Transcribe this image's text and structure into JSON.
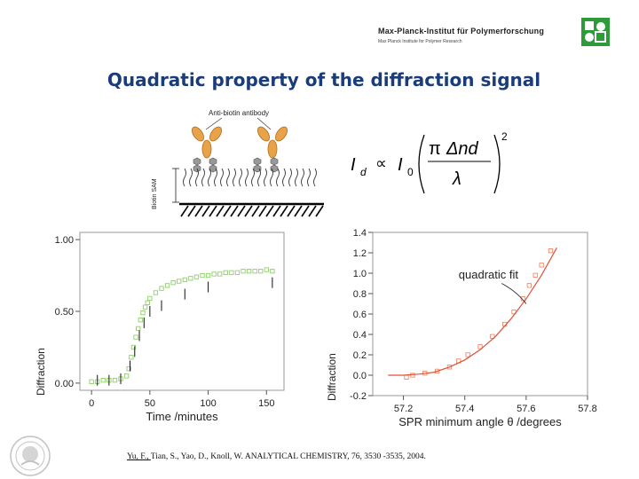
{
  "header": {
    "institute_name": "Max-Planck-Institut für Polymerforschung",
    "institute_subtitle": "Max Planck Institute for Polymer Research"
  },
  "slide_title": "Quadratic property of the diffraction signal",
  "schematic": {
    "antibody_label": "Anti-biotin antibody",
    "sam_label": "Biotin SAM"
  },
  "formula": {
    "lhs": "I",
    "lhs_sub": "d",
    "proportional": "∝",
    "rhs": "I",
    "rhs_sub": "0",
    "num_pi": "π",
    "num_delta": "Δnd",
    "den": "λ",
    "power": "2"
  },
  "colors": {
    "title": "#1a3c7a",
    "green_markers": "#8fcf6a",
    "fit_line": "#e0503a",
    "data_markers": "#f08a6a",
    "plot_frame": "#9a9a9a"
  },
  "chart_data": [
    {
      "type": "scatter",
      "xlabel": "Time /minutes",
      "ylabel": "Diffraction",
      "xticks": [
        "0",
        "50",
        "100",
        "150"
      ],
      "yticks": [
        "0.00",
        "0.50",
        "1.00"
      ],
      "xlim": [
        -10,
        165
      ],
      "ylim": [
        -0.05,
        1.05
      ],
      "series": [
        {
          "marker": "square-green",
          "x": [
            0,
            5,
            10,
            15,
            20,
            25,
            30,
            32,
            34,
            36,
            38,
            40,
            42,
            44,
            46,
            48,
            50,
            55,
            60,
            65,
            70,
            75,
            80,
            85,
            90,
            95,
            100,
            105,
            110,
            115,
            120,
            125,
            130,
            135,
            140,
            145,
            150,
            155
          ],
          "y": [
            0.01,
            0.01,
            0.02,
            0.02,
            0.02,
            0.03,
            0.05,
            0.1,
            0.18,
            0.25,
            0.32,
            0.38,
            0.44,
            0.49,
            0.53,
            0.56,
            0.59,
            0.63,
            0.66,
            0.68,
            0.7,
            0.71,
            0.72,
            0.73,
            0.74,
            0.75,
            0.75,
            0.76,
            0.76,
            0.77,
            0.77,
            0.77,
            0.78,
            0.78,
            0.78,
            0.78,
            0.79,
            0.78
          ]
        },
        {
          "marker": "errorbar-black",
          "x": [
            5,
            15,
            25,
            33,
            37,
            41,
            45,
            50,
            60,
            80,
            100,
            155
          ],
          "y": [
            0.02,
            0.02,
            0.03,
            0.12,
            0.22,
            0.33,
            0.42,
            0.5,
            0.54,
            0.62,
            0.67,
            0.7
          ]
        }
      ]
    },
    {
      "type": "scatter",
      "xlabel": "SPR minimum angle θ /degrees",
      "ylabel": "Diffraction",
      "xticks": [
        "57.2",
        "57.4",
        "57.6",
        "57.8"
      ],
      "yticks": [
        "-0.2",
        "0.0",
        "0.2",
        "0.4",
        "0.6",
        "0.8",
        "1.0",
        "1.2",
        "1.4"
      ],
      "xlim": [
        57.1,
        57.8
      ],
      "ylim": [
        -0.2,
        1.4
      ],
      "annotation": "quadratic fit",
      "series": [
        {
          "marker": "square-red",
          "x": [
            57.21,
            57.23,
            57.27,
            57.31,
            57.35,
            57.38,
            57.41,
            57.45,
            57.49,
            57.53,
            57.56,
            57.59,
            57.61,
            57.63,
            57.65,
            57.68
          ],
          "y": [
            -0.02,
            0.0,
            0.02,
            0.04,
            0.08,
            0.14,
            0.2,
            0.28,
            0.38,
            0.5,
            0.62,
            0.75,
            0.88,
            0.98,
            1.08,
            1.22
          ]
        },
        {
          "marker": "line-red",
          "x": [
            57.15,
            57.2,
            57.25,
            57.3,
            57.35,
            57.4,
            57.45,
            57.5,
            57.55,
            57.6,
            57.65,
            57.7
          ],
          "y": [
            0.0,
            0.0,
            0.01,
            0.03,
            0.08,
            0.15,
            0.25,
            0.38,
            0.55,
            0.75,
            0.98,
            1.25
          ]
        }
      ]
    }
  ],
  "citation": {
    "authors": "Yu, F., ",
    "rest": "Tian, S., Yao, D., Knoll, W. ANALYTICAL CHEMISTRY, 76, 3530 -3535, 2004."
  }
}
